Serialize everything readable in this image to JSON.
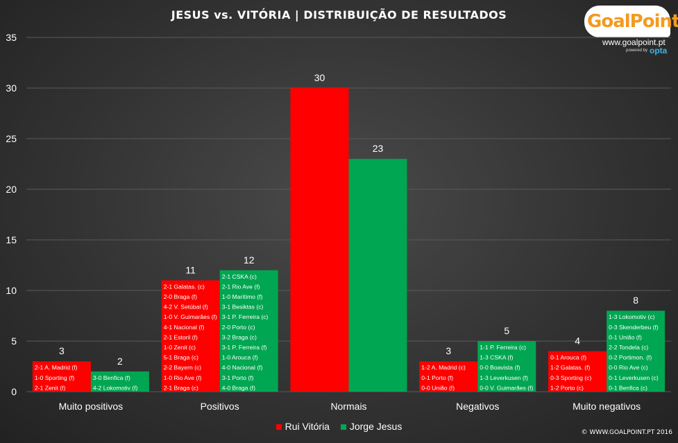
{
  "chart_data": {
    "type": "bar",
    "title": "JESUS vs. VITÓRIA | DISTRIBUIÇÃO DE RESULTADOS",
    "categories": [
      "Muito positivos",
      "Positivos",
      "Normais",
      "Negativos",
      "Muito negativos"
    ],
    "ylim": [
      0,
      35
    ],
    "yticks": [
      0,
      5,
      10,
      15,
      20,
      25,
      30,
      35
    ],
    "grid": true,
    "legend_position": "bottom",
    "series": [
      {
        "name": "Rui Vitória",
        "color": "#ff0000",
        "values": [
          3,
          11,
          30,
          3,
          4
        ],
        "results": [
          [
            "2-1 A. Madrid (f)",
            "1-0 Sporting (f)",
            "2-1 Zenit (f)"
          ],
          [
            "2-1 Galatas. (c)",
            "2-0 Braga (f)",
            "4-2 V. Setúbal (f)",
            "1-0 V. Guimarães (f)",
            "4-1 Nacional (f)",
            "2-1 Estoril (f)",
            "1-0 Zenit (c)",
            "5-1 Braga (c)",
            "2-2 Bayern (c)",
            "1-0 Rio Ave (f)",
            "2-1 Braga (c)"
          ],
          [],
          [
            "1-2 A. Madrid (c)",
            "0-1 Porto (f)",
            "0-0 União (f)"
          ],
          [
            "0-1 Arouca (f)",
            "1-2 Galatas. (f)",
            "0-3 Sporting (c)",
            "1-2 Porto (c)"
          ]
        ]
      },
      {
        "name": "Jorge Jesus",
        "color": "#00a651",
        "values": [
          2,
          12,
          23,
          5,
          8
        ],
        "results": [
          [
            "3-0 Benfica (f)",
            "4-2 Lokomotiv (f)"
          ],
          [
            "2-1 CSKA (c)",
            "2-1 Rio Ave (f)",
            "1-0 Marítimo (f)",
            "3-1 Besiktas (c)",
            "3-1 P. Ferreira (c)",
            "2-0 Porto (c)",
            "3-2 Braga (c)",
            "3-1 P. Ferreira (f)",
            "1-0 Arouca (f)",
            "4-0 Nacional (f)",
            "3-1 Porto (f)",
            "4-0 Braga (f)"
          ],
          [],
          [
            "1-1 P. Ferreira (c)",
            "1-3 CSKA (f)",
            "0-0 Boavista (f)",
            "1-3 Leverkusen (f)",
            "0-0 V. Guimarães (f)"
          ],
          [
            "1-3 Lokomotiv (c)",
            "0-3 Skenderbeu (f)",
            "0-1 União (f)",
            "2-2 Tondela (c)",
            "0-2 Portimon. (f)",
            "0-0 Rio Ave (c)",
            "0-1 Leverkusen (c)",
            "0-1 Benfica (c)"
          ]
        ]
      }
    ]
  },
  "logo": {
    "name": "GoalPoint",
    "url": "www.goalpoint.pt",
    "powered": "powered by",
    "opta": "opta"
  },
  "copyright": "© WWW.GOALPOINT.PT 2016"
}
